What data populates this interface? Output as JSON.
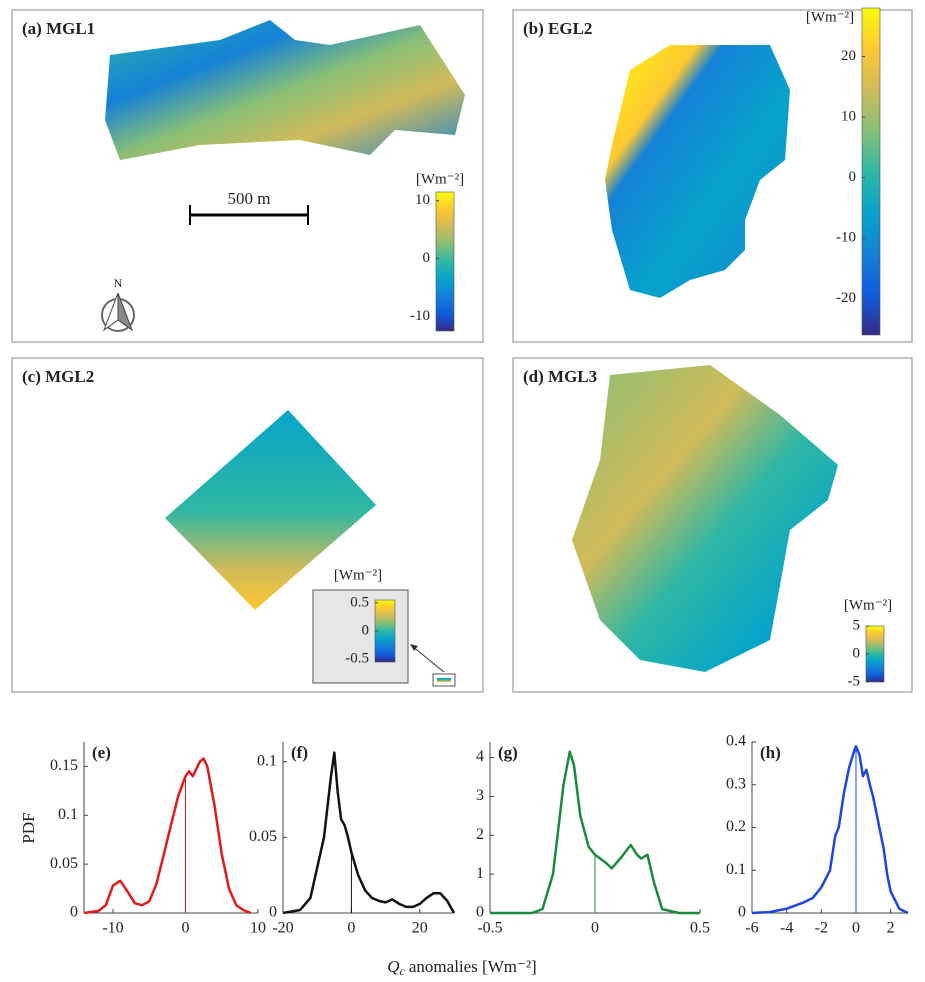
{
  "chart_data": [
    {
      "type": "map",
      "title": "(a) MGL1",
      "title_color": "#e3191c",
      "colorbar_label": "[Wm⁻²]",
      "clim": [
        -12.5,
        11.5
      ],
      "cticks": [
        -10,
        0,
        10
      ],
      "colormap": [
        "#352a87",
        "#0f5cdd",
        "#1481d6",
        "#06a4ca",
        "#2eb7a4",
        "#87bf77",
        "#d1bb59",
        "#fec832",
        "#f9fb0e"
      ],
      "scale_bar": "500 m",
      "north": "N"
    },
    {
      "type": "map",
      "title": "(b) EGL2",
      "title_color": "#111111",
      "colorbar_label": "[Wm⁻²]",
      "clim": [
        -26,
        28
      ],
      "cticks": [
        -20,
        -10,
        0,
        10,
        20
      ],
      "colormap": [
        "#352a87",
        "#0f5cdd",
        "#1481d6",
        "#06a4ca",
        "#2eb7a4",
        "#87bf77",
        "#d1bb59",
        "#fec832",
        "#f9fb0e"
      ]
    },
    {
      "type": "map",
      "title": "(c) MGL2",
      "title_color": "#1a8a3c",
      "colorbar_label": "[Wm⁻²]",
      "clim": [
        -0.55,
        0.55
      ],
      "cticks": [
        -0.5,
        0,
        0.5
      ],
      "colormap": [
        "#352a87",
        "#0f5cdd",
        "#1481d6",
        "#06a4ca",
        "#2eb7a4",
        "#87bf77",
        "#d1bb59",
        "#fec832",
        "#f9fb0e"
      ]
    },
    {
      "type": "map",
      "title": "(d) MGL3",
      "title_color": "#1f44e0",
      "colorbar_label": "[Wm⁻²]",
      "clim": [
        -5,
        5
      ],
      "cticks": [
        -5,
        0,
        5
      ],
      "colormap": [
        "#352a87",
        "#0f5cdd",
        "#1481d6",
        "#06a4ca",
        "#2eb7a4",
        "#87bf77",
        "#d1bb59",
        "#fec832",
        "#f9fb0e"
      ]
    },
    {
      "type": "line",
      "title": "(e)",
      "color": "#e3191c",
      "ylabel": "PDF",
      "xlim": [
        -14,
        10
      ],
      "ylim": [
        0,
        0.175
      ],
      "xticks": [
        -10,
        0,
        10
      ],
      "yticks": [
        0,
        0.05,
        0.1,
        0.15
      ],
      "vline_x": 0,
      "x": [
        -14,
        -12,
        -11,
        -10,
        -9,
        -8,
        -7,
        -6,
        -5,
        -4,
        -3,
        -2,
        -1,
        0,
        0.5,
        1,
        2,
        2.5,
        3,
        4,
        5,
        6,
        7,
        8,
        9
      ],
      "values": [
        0,
        0.002,
        0.008,
        0.028,
        0.033,
        0.022,
        0.01,
        0.008,
        0.012,
        0.03,
        0.06,
        0.09,
        0.12,
        0.14,
        0.145,
        0.14,
        0.155,
        0.158,
        0.15,
        0.11,
        0.06,
        0.025,
        0.008,
        0.003,
        0
      ]
    },
    {
      "type": "line",
      "title": "(f)",
      "color": "#111111",
      "xlim": [
        -20,
        30
      ],
      "ylim": [
        0,
        0.113
      ],
      "xticks": [
        -20,
        0,
        20
      ],
      "yticks": [
        0,
        0.05,
        0.1
      ],
      "vline_x": 0,
      "x": [
        -20,
        -15,
        -12,
        -10,
        -8,
        -6,
        -5,
        -4,
        -3,
        -2,
        -1,
        0,
        2,
        4,
        6,
        8,
        10,
        12,
        14,
        16,
        18,
        20,
        22,
        24,
        26,
        28,
        30
      ],
      "values": [
        0,
        0.002,
        0.01,
        0.03,
        0.05,
        0.09,
        0.106,
        0.08,
        0.062,
        0.058,
        0.05,
        0.04,
        0.025,
        0.015,
        0.01,
        0.008,
        0.007,
        0.009,
        0.006,
        0.004,
        0.004,
        0.006,
        0.01,
        0.013,
        0.013,
        0.008,
        0
      ]
    },
    {
      "type": "line",
      "title": "(g)",
      "color": "#1a8a3c",
      "xlim": [
        -0.5,
        0.5
      ],
      "ylim": [
        0,
        4.4
      ],
      "xticks": [
        -0.5,
        0,
        0.5
      ],
      "yticks": [
        0,
        1,
        2,
        3,
        4
      ],
      "vline_x": 0,
      "x": [
        -0.5,
        -0.3,
        -0.25,
        -0.2,
        -0.15,
        -0.12,
        -0.1,
        -0.07,
        -0.03,
        0,
        0.05,
        0.08,
        0.12,
        0.17,
        0.2,
        0.22,
        0.25,
        0.28,
        0.32,
        0.4,
        0.5
      ],
      "values": [
        0,
        0,
        0.1,
        1,
        3.3,
        4.15,
        3.8,
        2.5,
        1.7,
        1.5,
        1.3,
        1.15,
        1.4,
        1.75,
        1.5,
        1.4,
        1.5,
        0.8,
        0.1,
        0,
        0
      ]
    },
    {
      "type": "line",
      "title": "(h)",
      "color": "#1f44e0",
      "xlim": [
        -6,
        3
      ],
      "ylim": [
        0,
        0.4
      ],
      "xticks": [
        -6,
        -4,
        -2,
        0,
        2
      ],
      "yticks": [
        0,
        0.1,
        0.2,
        0.3,
        0.4
      ],
      "vline_x": 0,
      "x": [
        -6,
        -5,
        -4,
        -3,
        -2.5,
        -2,
        -1.5,
        -1.2,
        -1,
        -0.7,
        -0.4,
        -0.1,
        0,
        0.2,
        0.4,
        0.6,
        0.8,
        1,
        1.3,
        1.6,
        1.8,
        2,
        2.5,
        3
      ],
      "values": [
        0,
        0.002,
        0.01,
        0.025,
        0.035,
        0.06,
        0.1,
        0.18,
        0.2,
        0.28,
        0.34,
        0.38,
        0.39,
        0.37,
        0.32,
        0.335,
        0.3,
        0.27,
        0.21,
        0.15,
        0.09,
        0.05,
        0.01,
        0
      ]
    }
  ],
  "xlabel": {
    "symbol": "Q",
    "subscript": "c",
    "text": "anomalies [Wm⁻²]"
  }
}
